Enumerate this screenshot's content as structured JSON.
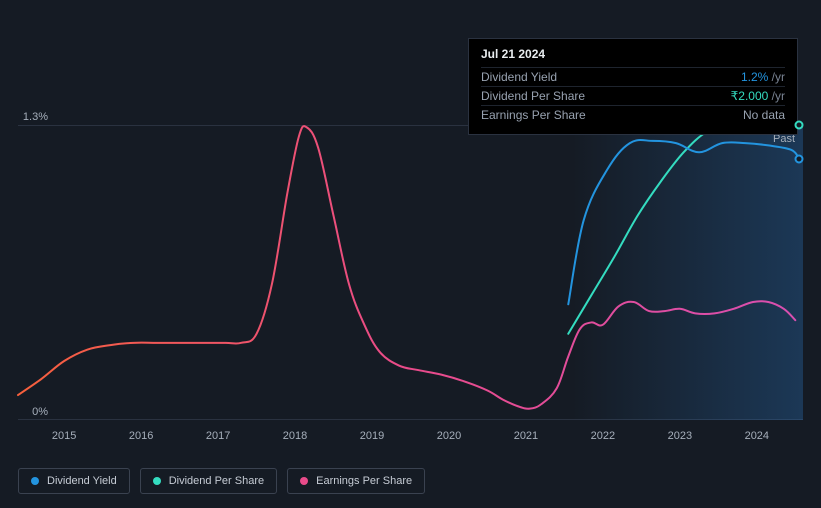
{
  "chart": {
    "background_color": "#151b24",
    "gridline_color": "#2a3240",
    "axis_label_color": "#a6afbb",
    "axis_fontsize": 11,
    "ylim": [
      0,
      1.3
    ],
    "y_ticks": [
      {
        "value": 0,
        "label": "0%"
      },
      {
        "value": 1.3,
        "label": "1.3%"
      }
    ],
    "x_ticks": [
      "2015",
      "2016",
      "2017",
      "2018",
      "2019",
      "2020",
      "2021",
      "2022",
      "2023",
      "2024"
    ],
    "past_label": "Past",
    "shade_start_year": 2021.6,
    "shade_end_year": 2024.6,
    "line_width": 2,
    "series": {
      "dividend_yield": {
        "label": "Dividend Yield",
        "color": "#2394df",
        "marker_end": true,
        "points": [
          [
            2021.55,
            0.51
          ],
          [
            2021.75,
            0.88
          ],
          [
            2022.05,
            1.1
          ],
          [
            2022.35,
            1.22
          ],
          [
            2022.65,
            1.23
          ],
          [
            2022.95,
            1.22
          ],
          [
            2023.25,
            1.18
          ],
          [
            2023.55,
            1.22
          ],
          [
            2023.85,
            1.22
          ],
          [
            2024.15,
            1.21
          ],
          [
            2024.45,
            1.19
          ],
          [
            2024.55,
            1.15
          ]
        ]
      },
      "dividend_per_share": {
        "label": "Dividend Per Share",
        "color": "#34dcc0",
        "marker_end": true,
        "points": [
          [
            2021.55,
            0.38
          ],
          [
            2021.85,
            0.55
          ],
          [
            2022.15,
            0.72
          ],
          [
            2022.45,
            0.9
          ],
          [
            2022.75,
            1.05
          ],
          [
            2023.05,
            1.18
          ],
          [
            2023.35,
            1.27
          ],
          [
            2023.65,
            1.3
          ],
          [
            2023.95,
            1.3
          ],
          [
            2024.25,
            1.3
          ],
          [
            2024.55,
            1.3
          ]
        ]
      },
      "earnings_per_share": {
        "label": "Earnings Per Share",
        "gradient": {
          "from": "#f7603c",
          "mid": "#e94b8a",
          "to": "#d94fb0"
        },
        "legend_color": "#e94b8a",
        "points": [
          [
            2014.4,
            0.11
          ],
          [
            2014.7,
            0.18
          ],
          [
            2015.0,
            0.26
          ],
          [
            2015.3,
            0.31
          ],
          [
            2015.6,
            0.33
          ],
          [
            2015.9,
            0.34
          ],
          [
            2016.2,
            0.34
          ],
          [
            2016.5,
            0.34
          ],
          [
            2016.8,
            0.34
          ],
          [
            2017.1,
            0.34
          ],
          [
            2017.3,
            0.34
          ],
          [
            2017.5,
            0.38
          ],
          [
            2017.7,
            0.6
          ],
          [
            2017.9,
            1.0
          ],
          [
            2018.05,
            1.25
          ],
          [
            2018.15,
            1.29
          ],
          [
            2018.3,
            1.2
          ],
          [
            2018.5,
            0.9
          ],
          [
            2018.7,
            0.6
          ],
          [
            2018.9,
            0.42
          ],
          [
            2019.1,
            0.3
          ],
          [
            2019.35,
            0.24
          ],
          [
            2019.6,
            0.22
          ],
          [
            2019.9,
            0.2
          ],
          [
            2020.2,
            0.17
          ],
          [
            2020.5,
            0.13
          ],
          [
            2020.7,
            0.09
          ],
          [
            2020.9,
            0.06
          ],
          [
            2021.05,
            0.05
          ],
          [
            2021.2,
            0.07
          ],
          [
            2021.4,
            0.14
          ],
          [
            2021.55,
            0.28
          ],
          [
            2021.7,
            0.4
          ],
          [
            2021.85,
            0.43
          ],
          [
            2022.0,
            0.42
          ],
          [
            2022.2,
            0.5
          ],
          [
            2022.4,
            0.52
          ],
          [
            2022.6,
            0.48
          ],
          [
            2022.8,
            0.48
          ],
          [
            2023.0,
            0.49
          ],
          [
            2023.2,
            0.47
          ],
          [
            2023.45,
            0.47
          ],
          [
            2023.7,
            0.49
          ],
          [
            2023.95,
            0.52
          ],
          [
            2024.15,
            0.52
          ],
          [
            2024.35,
            0.49
          ],
          [
            2024.5,
            0.44
          ]
        ]
      }
    },
    "x_domain": [
      2014.4,
      2024.6
    ]
  },
  "tooltip": {
    "date": "Jul 21 2024",
    "rows": [
      {
        "label": "Dividend Yield",
        "value": "1.2%",
        "suffix": "/yr",
        "value_color": "#2394df"
      },
      {
        "label": "Dividend Per Share",
        "value": "₹2.000",
        "suffix": "/yr",
        "value_color": "#34dcc0"
      },
      {
        "label": "Earnings Per Share",
        "value": "No data",
        "suffix": "",
        "value_color": "#98a2b0"
      }
    ]
  },
  "legend": {
    "items": [
      {
        "label": "Dividend Yield",
        "color": "#2394df"
      },
      {
        "label": "Dividend Per Share",
        "color": "#34dcc0"
      },
      {
        "label": "Earnings Per Share",
        "color": "#e94b8a"
      }
    ]
  }
}
